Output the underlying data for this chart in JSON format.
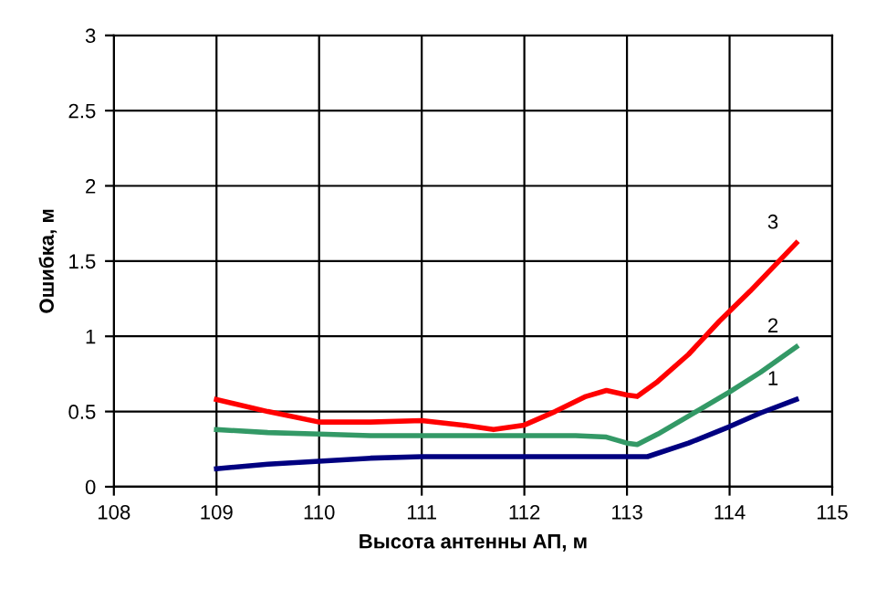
{
  "chart_data": {
    "type": "line",
    "xlabel": "Высота антенны АП, м",
    "ylabel": "Ошибка, м",
    "xlim": [
      108,
      115
    ],
    "xticks": [
      108,
      109,
      110,
      111,
      112,
      113,
      114,
      115
    ],
    "ylim": [
      0,
      3
    ],
    "yticks": [
      0,
      0.5,
      1,
      1.5,
      2,
      2.5,
      3
    ],
    "grid": true,
    "marker": "none",
    "line_style": "solid",
    "series": [
      {
        "name": "1",
        "color": "#000080",
        "x": [
          109,
          109.5,
          110,
          110.5,
          111,
          111.5,
          112,
          112.5,
          113,
          113.2,
          113.6,
          114,
          114.3,
          114.65
        ],
        "values": [
          0.12,
          0.15,
          0.17,
          0.19,
          0.2,
          0.2,
          0.2,
          0.2,
          0.2,
          0.2,
          0.29,
          0.4,
          0.49,
          0.58
        ]
      },
      {
        "name": "2",
        "color": "#339966",
        "x": [
          109,
          109.5,
          110,
          110.5,
          111,
          111.5,
          112,
          112.5,
          112.8,
          113,
          113.1,
          113.3,
          113.6,
          114,
          114.3,
          114.65
        ],
        "values": [
          0.38,
          0.36,
          0.35,
          0.34,
          0.34,
          0.34,
          0.34,
          0.34,
          0.33,
          0.29,
          0.28,
          0.35,
          0.47,
          0.63,
          0.76,
          0.93
        ]
      },
      {
        "name": "3",
        "color": "#ff0000",
        "x": [
          109,
          109.5,
          110,
          110.5,
          111,
          111.4,
          111.7,
          112,
          112.3,
          112.6,
          112.8,
          113,
          113.1,
          113.3,
          113.6,
          113.9,
          114.2,
          114.65
        ],
        "values": [
          0.58,
          0.5,
          0.43,
          0.43,
          0.44,
          0.41,
          0.38,
          0.41,
          0.5,
          0.6,
          0.64,
          0.61,
          0.6,
          0.7,
          0.88,
          1.1,
          1.3,
          1.62
        ]
      }
    ]
  }
}
